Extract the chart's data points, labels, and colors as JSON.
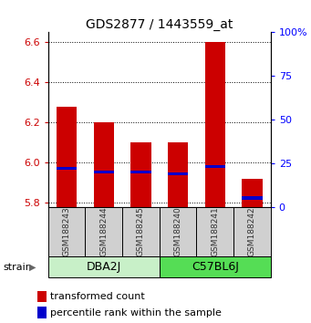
{
  "title": "GDS2877 / 1443559_at",
  "samples": [
    "GSM188243",
    "GSM188244",
    "GSM188245",
    "GSM188240",
    "GSM188241",
    "GSM188242"
  ],
  "transformed_counts": [
    6.28,
    6.2,
    6.1,
    6.1,
    6.6,
    5.92
  ],
  "percentile_ranks": [
    22,
    20,
    20,
    19,
    23,
    5
  ],
  "ylim": [
    5.78,
    6.65
  ],
  "yticks_left": [
    5.8,
    6.0,
    6.2,
    6.4,
    6.6
  ],
  "yticks_right_vals": [
    0,
    25,
    50,
    75,
    100
  ],
  "yticks_right_labels": [
    "0",
    "25",
    "50",
    "75",
    "100%"
  ],
  "bar_base": 5.78,
  "bar_width": 0.55,
  "red_color": "#CC0000",
  "blue_color": "#0000CC",
  "blue_bar_height": 0.015,
  "label_transformed": "transformed count",
  "label_percentile": "percentile rank within the sample",
  "group_spans": [
    [
      0,
      2,
      "DBA2J",
      "#c8f0c8"
    ],
    [
      3,
      5,
      "C57BL6J",
      "#55dd55"
    ]
  ],
  "sample_box_color": "#d0d0d0",
  "sample_text_color": "#333333"
}
